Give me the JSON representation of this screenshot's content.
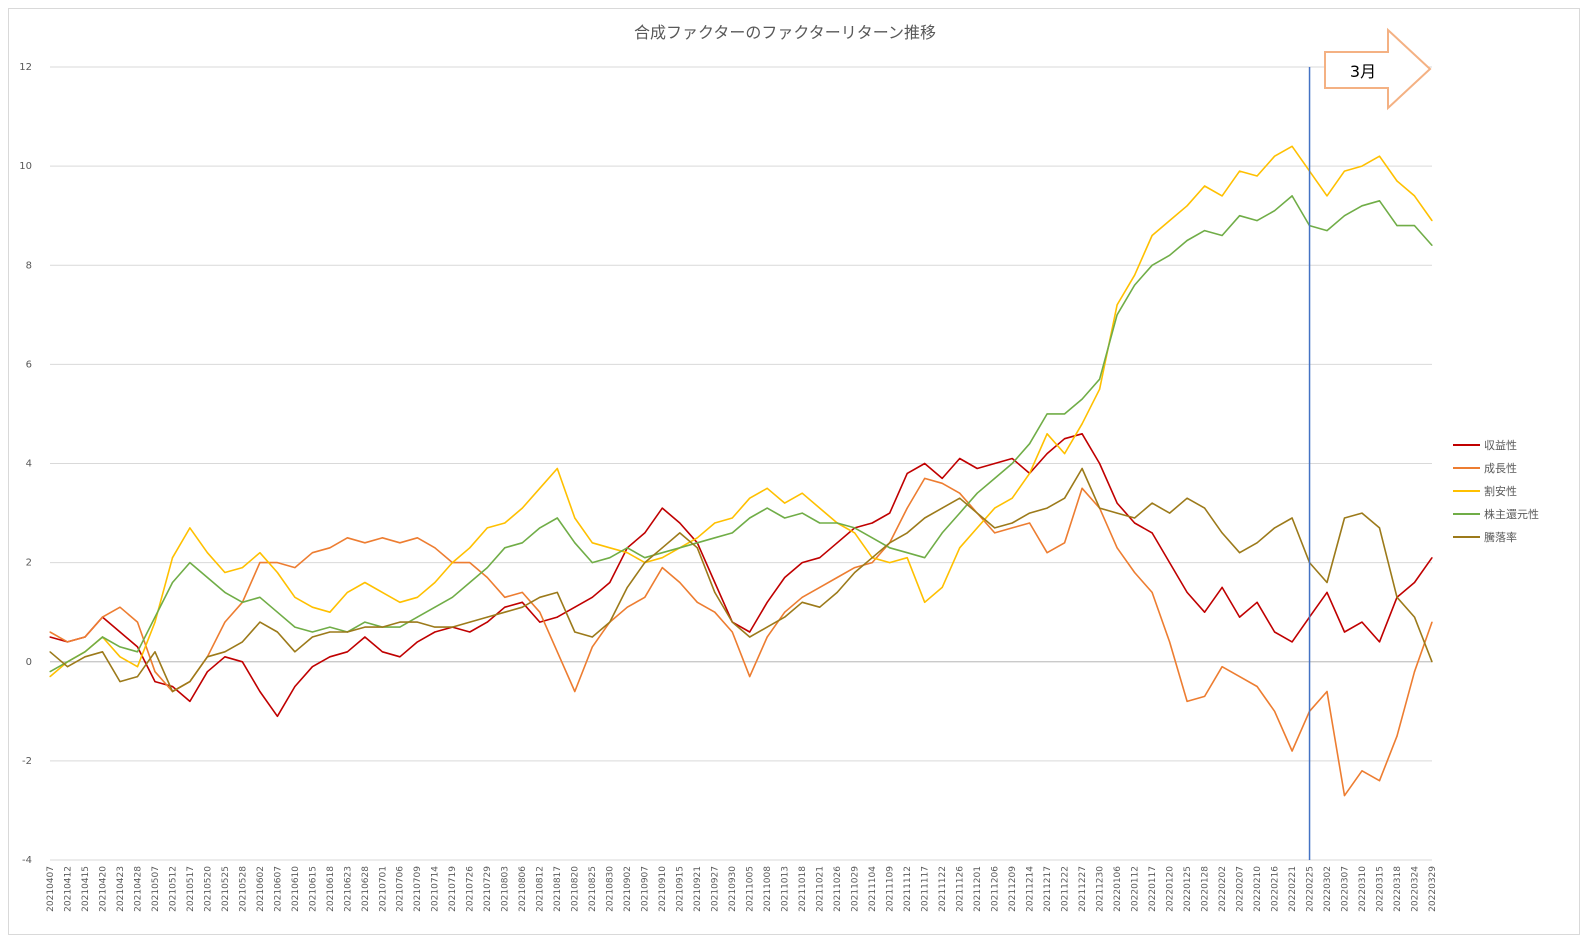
{
  "chart_data": {
    "type": "line",
    "title": "合成ファクターのファクターリターン推移",
    "xlabel": "",
    "ylabel": "",
    "ylim": [
      -4,
      12
    ],
    "yticks": [
      -4,
      -2,
      0,
      2,
      4,
      6,
      8,
      10,
      12
    ],
    "grid": true,
    "legend_position": "right",
    "categories": [
      "20210407",
      "20210412",
      "20210415",
      "20210420",
      "20210423",
      "20210428",
      "20210507",
      "20210512",
      "20210517",
      "20210520",
      "20210525",
      "20210528",
      "20210602",
      "20210607",
      "20210610",
      "20210615",
      "20210618",
      "20210623",
      "20210628",
      "20210701",
      "20210706",
      "20210709",
      "20210714",
      "20210719",
      "20210726",
      "20210729",
      "20210803",
      "20210806",
      "20210812",
      "20210817",
      "20210820",
      "20210825",
      "20210830",
      "20210902",
      "20210907",
      "20210910",
      "20210915",
      "20210921",
      "20210927",
      "20210930",
      "20211005",
      "20211008",
      "20211013",
      "20211018",
      "20211021",
      "20211026",
      "20211029",
      "20211104",
      "20211109",
      "20211112",
      "20211117",
      "20211122",
      "20211126",
      "20211201",
      "20211206",
      "20211209",
      "20211214",
      "20211217",
      "20211222",
      "20211227",
      "20211230",
      "20220106",
      "20220112",
      "20220117",
      "20220120",
      "20220125",
      "20220128",
      "20220202",
      "20220207",
      "20220210",
      "20220216",
      "20220221",
      "20220225",
      "20220302",
      "20220307",
      "20220310",
      "20220315",
      "20220318",
      "20220324",
      "20220329"
    ],
    "series": [
      {
        "name": "収益性",
        "color": "#c00000",
        "values": [
          0.5,
          0.4,
          0.5,
          0.9,
          0.6,
          0.3,
          -0.4,
          -0.5,
          -0.8,
          -0.2,
          0.1,
          0.0,
          -0.6,
          -1.1,
          -0.5,
          -0.1,
          0.1,
          0.2,
          0.5,
          0.2,
          0.1,
          0.4,
          0.6,
          0.7,
          0.6,
          0.8,
          1.1,
          1.2,
          0.8,
          0.9,
          1.1,
          1.3,
          1.6,
          2.3,
          2.6,
          3.1,
          2.8,
          2.4,
          1.6,
          0.8,
          0.6,
          1.2,
          1.7,
          2.0,
          2.1,
          2.4,
          2.7,
          2.8,
          3.0,
          3.8,
          4.0,
          3.7,
          4.1,
          3.9,
          4.0,
          4.1,
          3.8,
          4.2,
          4.5,
          4.6,
          4.0,
          3.2,
          2.8,
          2.6,
          2.0,
          1.4,
          1.0,
          1.5,
          0.9,
          1.2,
          0.6,
          0.4,
          0.9,
          1.4,
          0.6,
          0.8,
          0.4,
          1.3,
          1.6,
          2.1
        ]
      },
      {
        "name": "成長性",
        "color": "#ed7d31",
        "values": [
          0.6,
          0.4,
          0.5,
          0.9,
          1.1,
          0.8,
          -0.2,
          -0.6,
          -0.4,
          0.1,
          0.8,
          1.2,
          2.0,
          2.0,
          1.9,
          2.2,
          2.3,
          2.5,
          2.4,
          2.5,
          2.4,
          2.5,
          2.3,
          2.0,
          2.0,
          1.7,
          1.3,
          1.4,
          1.0,
          0.2,
          -0.6,
          0.3,
          0.8,
          1.1,
          1.3,
          1.9,
          1.6,
          1.2,
          1.0,
          0.6,
          -0.3,
          0.5,
          1.0,
          1.3,
          1.5,
          1.7,
          1.9,
          2.0,
          2.4,
          3.1,
          3.7,
          3.6,
          3.4,
          3.0,
          2.6,
          2.7,
          2.8,
          2.2,
          2.4,
          3.5,
          3.1,
          2.3,
          1.8,
          1.4,
          0.4,
          -0.8,
          -0.7,
          -0.1,
          -0.3,
          -0.5,
          -1.0,
          -1.8,
          -1.0,
          -0.6,
          -2.7,
          -2.2,
          -2.4,
          -1.5,
          -0.2,
          0.8
        ]
      },
      {
        "name": "割安性",
        "color": "#ffc000",
        "values": [
          -0.3,
          0.0,
          0.2,
          0.5,
          0.1,
          -0.1,
          0.8,
          2.1,
          2.7,
          2.2,
          1.8,
          1.9,
          2.2,
          1.8,
          1.3,
          1.1,
          1.0,
          1.4,
          1.6,
          1.4,
          1.2,
          1.3,
          1.6,
          2.0,
          2.3,
          2.7,
          2.8,
          3.1,
          3.5,
          3.9,
          2.9,
          2.4,
          2.3,
          2.2,
          2.0,
          2.1,
          2.3,
          2.5,
          2.8,
          2.9,
          3.3,
          3.5,
          3.2,
          3.4,
          3.1,
          2.8,
          2.6,
          2.1,
          2.0,
          2.1,
          1.2,
          1.5,
          2.3,
          2.7,
          3.1,
          3.3,
          3.8,
          4.6,
          4.2,
          4.8,
          5.5,
          7.2,
          7.8,
          8.6,
          8.9,
          9.2,
          9.6,
          9.4,
          9.9,
          9.8,
          10.2,
          10.4,
          9.9,
          9.4,
          9.9,
          10.0,
          10.2,
          9.7,
          9.4,
          8.9
        ]
      },
      {
        "name": "株主還元性",
        "color": "#70ad47",
        "values": [
          -0.2,
          0.0,
          0.2,
          0.5,
          0.3,
          0.2,
          0.9,
          1.6,
          2.0,
          1.7,
          1.4,
          1.2,
          1.3,
          1.0,
          0.7,
          0.6,
          0.7,
          0.6,
          0.8,
          0.7,
          0.7,
          0.9,
          1.1,
          1.3,
          1.6,
          1.9,
          2.3,
          2.4,
          2.7,
          2.9,
          2.4,
          2.0,
          2.1,
          2.3,
          2.1,
          2.2,
          2.3,
          2.4,
          2.5,
          2.6,
          2.9,
          3.1,
          2.9,
          3.0,
          2.8,
          2.8,
          2.7,
          2.5,
          2.3,
          2.2,
          2.1,
          2.6,
          3.0,
          3.4,
          3.7,
          4.0,
          4.4,
          5.0,
          5.0,
          5.3,
          5.7,
          7.0,
          7.6,
          8.0,
          8.2,
          8.5,
          8.7,
          8.6,
          9.0,
          8.9,
          9.1,
          9.4,
          8.8,
          8.7,
          9.0,
          9.2,
          9.3,
          8.8,
          8.8,
          8.4
        ]
      },
      {
        "name": "騰落率",
        "color": "#9c7a1a",
        "values": [
          0.2,
          -0.1,
          0.1,
          0.2,
          -0.4,
          -0.3,
          0.2,
          -0.6,
          -0.4,
          0.1,
          0.2,
          0.4,
          0.8,
          0.6,
          0.2,
          0.5,
          0.6,
          0.6,
          0.7,
          0.7,
          0.8,
          0.8,
          0.7,
          0.7,
          0.8,
          0.9,
          1.0,
          1.1,
          1.3,
          1.4,
          0.6,
          0.5,
          0.8,
          1.5,
          2.0,
          2.3,
          2.6,
          2.3,
          1.4,
          0.8,
          0.5,
          0.7,
          0.9,
          1.2,
          1.1,
          1.4,
          1.8,
          2.1,
          2.4,
          2.6,
          2.9,
          3.1,
          3.3,
          3.0,
          2.7,
          2.8,
          3.0,
          3.1,
          3.3,
          3.9,
          3.1,
          3.0,
          2.9,
          3.2,
          3.0,
          3.3,
          3.1,
          2.6,
          2.2,
          2.4,
          2.7,
          2.9,
          2.0,
          1.6,
          2.9,
          3.0,
          2.7,
          1.3,
          0.9,
          0.0
        ]
      }
    ],
    "annotation": {
      "vline_category": "20220225",
      "vline_color": "#4472c4",
      "callout_text": "3月"
    }
  }
}
